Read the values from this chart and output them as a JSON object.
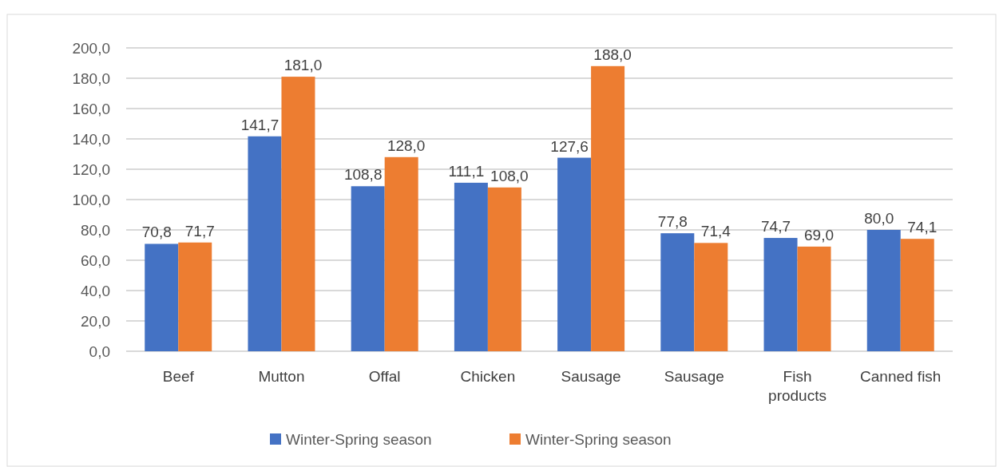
{
  "chart_data": {
    "type": "bar",
    "categories": [
      "Beef",
      "Mutton",
      "Offal",
      "Chicken",
      "Sausage",
      "Sausage",
      "Fish products",
      "Canned fish"
    ],
    "series": [
      {
        "name": "Winter-Spring season",
        "color": "#4472c4",
        "values": [
          70.8,
          141.7,
          108.8,
          111.1,
          127.6,
          77.8,
          74.7,
          80.0
        ],
        "value_labels": [
          "70,8",
          "141,7",
          "108,8",
          "111,1",
          "127,6",
          "77,8",
          "74,7",
          "80,0"
        ]
      },
      {
        "name": "Winter-Spring season",
        "color": "#ed7d31",
        "values": [
          71.7,
          181.0,
          128.0,
          108.0,
          188.0,
          71.4,
          69.0,
          74.1
        ],
        "value_labels": [
          "71,7",
          "181,0",
          "128,0",
          "108,0",
          "188,0",
          "71,4",
          "69,0",
          "74,1"
        ]
      }
    ],
    "ylim": [
      0,
      200
    ],
    "yticks": [
      {
        "value": 0,
        "label": "0,0"
      },
      {
        "value": 20,
        "label": "20,0"
      },
      {
        "value": 40,
        "label": "40,0"
      },
      {
        "value": 60,
        "label": "60,0"
      },
      {
        "value": 80,
        "label": "80,0"
      },
      {
        "value": 100,
        "label": "100,0"
      },
      {
        "value": 120,
        "label": "120,0"
      },
      {
        "value": 140,
        "label": "140,0"
      },
      {
        "value": 160,
        "label": "160,0"
      },
      {
        "value": 180,
        "label": "180,0"
      },
      {
        "value": 200,
        "label": "200,0"
      }
    ],
    "grid": "y",
    "legend": "bottom"
  }
}
